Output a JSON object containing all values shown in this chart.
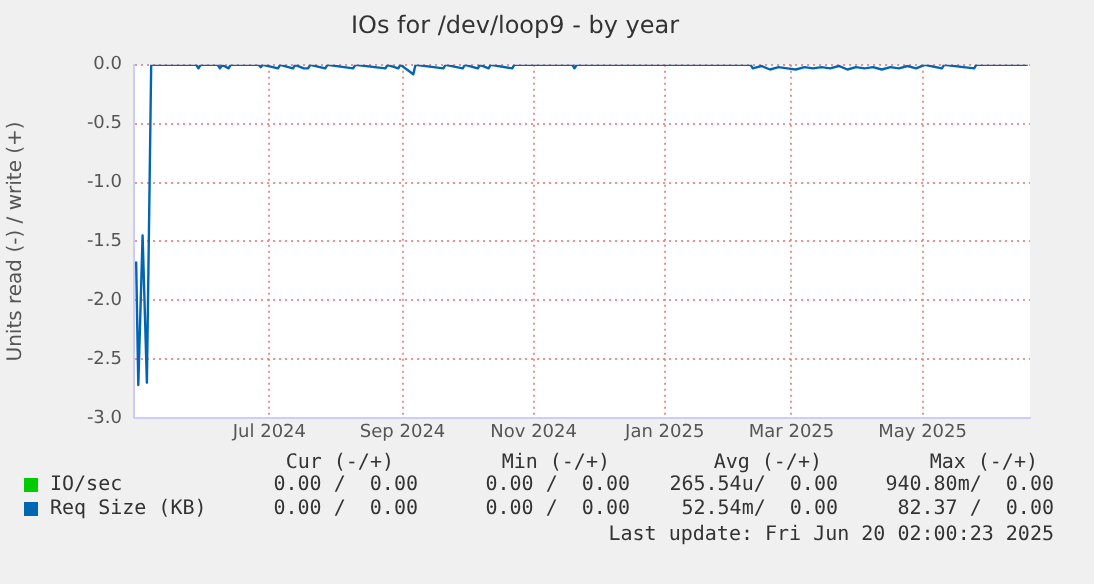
{
  "chart_data": {
    "type": "line",
    "title": "IOs for /dev/loop9 - by year",
    "ylabel": "Units read (-) / write (+)",
    "x": [
      "2024-04-30",
      "2024-05-01",
      "2024-05-03",
      "2024-05-05",
      "2024-05-07",
      "2024-05-28",
      "2024-05-29",
      "2024-05-30",
      "2024-06-07",
      "2024-06-08",
      "2024-06-09",
      "2024-06-12",
      "2024-06-13",
      "2024-06-26",
      "2024-06-27",
      "2024-06-28",
      "2024-07-05",
      "2024-07-06",
      "2024-07-12",
      "2024-07-13",
      "2024-07-17",
      "2024-07-19",
      "2024-07-20",
      "2024-07-27",
      "2024-07-28",
      "2024-08-09",
      "2024-08-10",
      "2024-08-24",
      "2024-08-25",
      "2024-08-30",
      "2024-08-31",
      "2024-09-06",
      "2024-09-07",
      "2024-09-20",
      "2024-09-21",
      "2024-09-29",
      "2024-09-30",
      "2024-10-06",
      "2024-10-07",
      "2024-10-11",
      "2024-10-12",
      "2024-10-22",
      "2024-10-23",
      "2024-11-19",
      "2024-11-20",
      "2024-11-21",
      "2025-02-10",
      "2025-02-11",
      "2025-02-15",
      "2025-02-19",
      "2025-02-23",
      "2025-02-27",
      "2025-03-03",
      "2025-03-07",
      "2025-03-11",
      "2025-03-15",
      "2025-03-19",
      "2025-03-23",
      "2025-03-27",
      "2025-03-31",
      "2025-04-04",
      "2025-04-08",
      "2025-04-12",
      "2025-04-16",
      "2025-04-20",
      "2025-04-24",
      "2025-04-28",
      "2025-05-02",
      "2025-05-10",
      "2025-05-11",
      "2025-05-25",
      "2025-05-26",
      "2025-06-19"
    ],
    "series": [
      {
        "name": "IO/sec",
        "color": "#00cc00",
        "values": [
          null,
          null,
          null,
          null,
          null,
          null,
          null,
          null,
          null,
          null,
          null,
          null,
          null,
          null,
          null,
          null,
          null,
          null,
          null,
          null,
          null,
          null,
          null,
          null,
          null,
          null,
          null,
          null,
          null,
          null,
          null,
          null,
          null,
          null,
          null,
          null,
          null,
          null,
          null,
          null,
          null,
          null,
          null,
          null,
          null,
          null,
          null,
          null,
          null,
          null,
          null,
          null,
          null,
          null,
          null,
          null,
          null,
          null,
          null,
          null,
          null,
          null,
          null,
          null,
          null,
          null,
          null,
          null,
          null,
          null,
          null,
          null,
          null
        ]
      },
      {
        "name": "Req Size (KB)",
        "color": "#0066b3",
        "values": [
          -1.67,
          -2.72,
          -1.45,
          -2.7,
          0,
          0,
          -0.03,
          0,
          0,
          -0.03,
          0,
          -0.03,
          0,
          0,
          -0.02,
          0,
          -0.03,
          0,
          -0.03,
          0,
          -0.03,
          -0.03,
          0,
          -0.03,
          0,
          -0.03,
          0,
          -0.03,
          0,
          -0.03,
          0,
          -0.08,
          0,
          -0.03,
          0,
          -0.03,
          0,
          -0.03,
          0,
          -0.03,
          0,
          -0.03,
          0,
          0,
          -0.03,
          0,
          0,
          -0.03,
          -0.01,
          -0.04,
          -0.02,
          -0.03,
          -0.04,
          -0.02,
          -0.03,
          -0.02,
          -0.03,
          -0.01,
          -0.04,
          -0.02,
          -0.03,
          -0.02,
          -0.04,
          -0.02,
          -0.03,
          -0.01,
          -0.03,
          0,
          -0.03,
          0,
          -0.03,
          0,
          0
        ]
      }
    ],
    "xlim": [
      "2024-04-29",
      "2025-06-20"
    ],
    "xticks": [
      {
        "value": "2024-07-01",
        "label": "Jul 2024"
      },
      {
        "value": "2024-09-01",
        "label": "Sep 2024"
      },
      {
        "value": "2024-11-01",
        "label": "Nov 2024"
      },
      {
        "value": "2025-01-01",
        "label": "Jan 2025"
      },
      {
        "value": "2025-03-01",
        "label": "Mar 2025"
      },
      {
        "value": "2025-05-01",
        "label": "May 2025"
      }
    ],
    "ylim": [
      -3,
      0
    ],
    "yticks": [
      {
        "value": -3,
        "label": "-3.0"
      },
      {
        "value": -2.5,
        "label": "-2.5"
      },
      {
        "value": -2,
        "label": "-2.0"
      },
      {
        "value": -1.5,
        "label": "-1.5"
      },
      {
        "value": -1,
        "label": "-1.0"
      },
      {
        "value": -0.5,
        "label": "-0.5"
      },
      {
        "value": 0,
        "label": "0.0"
      }
    ],
    "grid": true,
    "legend": "bottom",
    "marker": "none",
    "line_style": "solid",
    "annotations": [
      "Cur (-/+)",
      "Min (-/+)",
      "Avg (-/+)",
      "Max (-/+)",
      "0.00 /  0.00",
      "0.00 /  0.00",
      "265.54u/  0.00",
      "940.80m/  0.00",
      "0.00 /  0.00",
      "0.00 /  0.00",
      "52.54m/  0.00",
      "82.37 /  0.00",
      "Last update: Fri Jun 20 02:00:23 2025"
    ]
  }
}
